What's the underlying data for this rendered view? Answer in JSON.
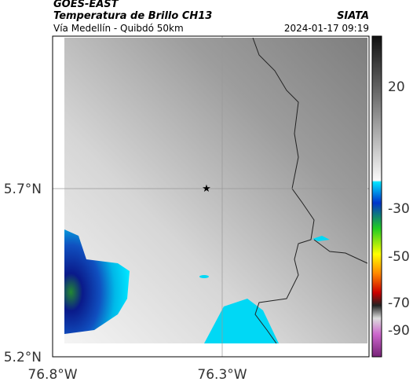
{
  "header": {
    "title": "GOES-EAST",
    "subtitle": "Temperatura de Brillo CH13",
    "source": "SIATA",
    "location": "Vía Medellín - Quibdó 50km",
    "datetime": "2024-01-17 09:19"
  },
  "map": {
    "lat_ticks": [
      "5.7°N",
      "5.2°N"
    ],
    "lon_ticks": [
      "76.8°W",
      "76.3°W"
    ]
  },
  "colorbar": {
    "ticks": [
      "20",
      "-30",
      "-50",
      "-70",
      "-90"
    ]
  }
}
